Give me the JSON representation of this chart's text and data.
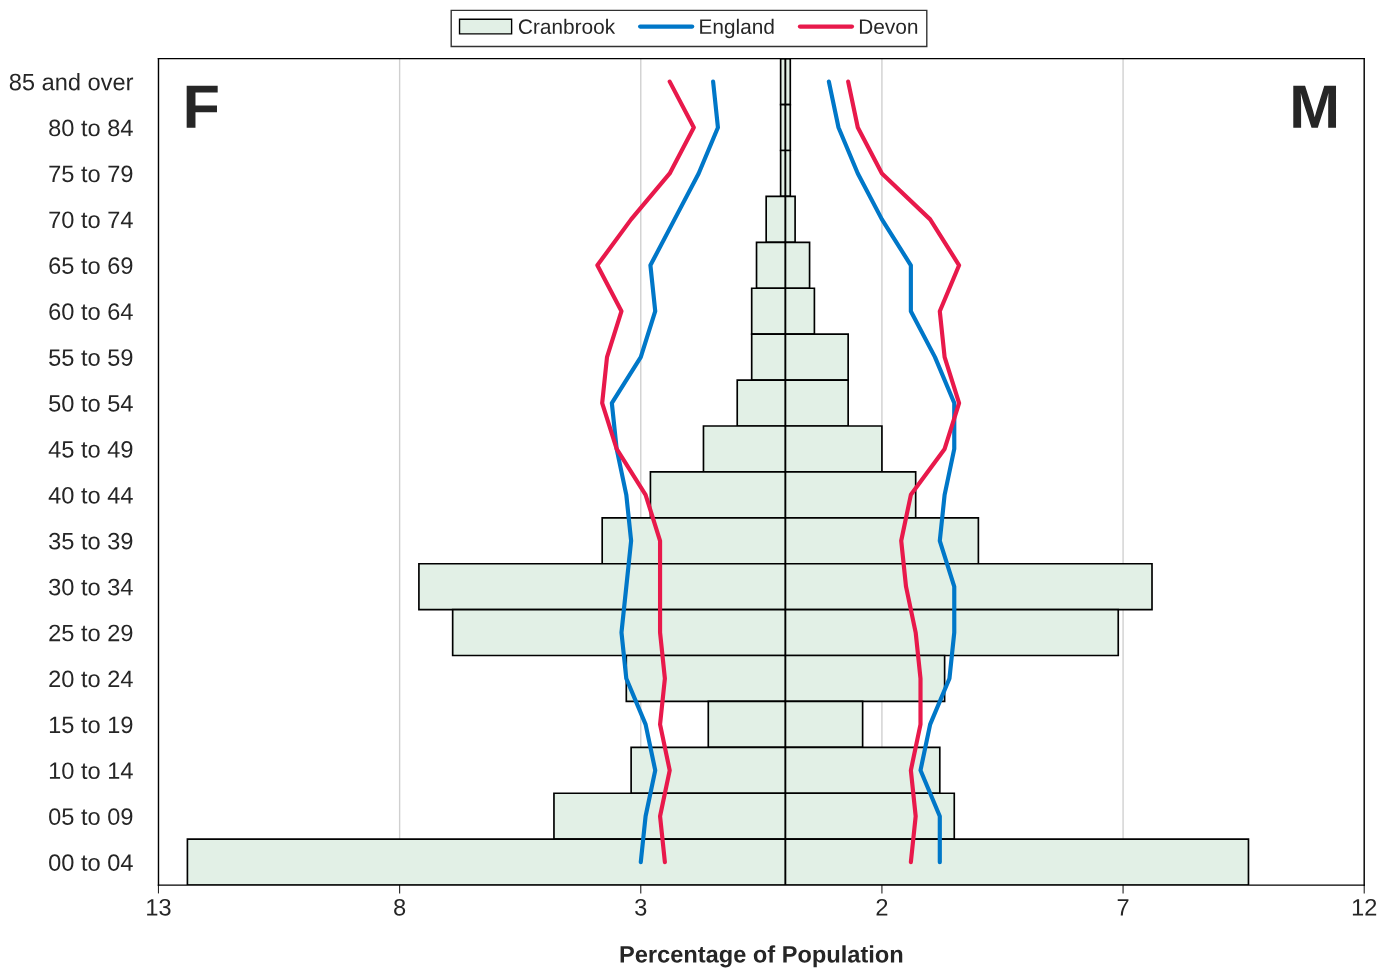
{
  "chart_data": {
    "type": "bar",
    "orientation": "horizontal",
    "stacked": true,
    "xlabel": "Percentage of Population",
    "categories": [
      "85 and over",
      "80 to 84",
      "75 to 79",
      "70 to 74",
      "65 to 69",
      "60 to 64",
      "55 to 59",
      "50 to 54",
      "45 to 49",
      "40 to 44",
      "35 to 39",
      "30 to 34",
      "25 to 29",
      "20 to 24",
      "15 to 19",
      "10 to 14",
      "05 to 09",
      "00 to 04"
    ],
    "series": [
      {
        "name": "Cranbrook",
        "color": "#e2f0e6",
        "values": [
          -0.1,
          -0.1,
          -0.1,
          -0.4,
          -0.6,
          -0.7,
          -0.7,
          -1.0,
          -1.7,
          -2.8,
          -3.8,
          -7.6,
          -6.9,
          -3.3,
          -1.6,
          -3.2,
          -4.8,
          -12.4
        ]
      },
      {
        "color": "#e2f0e6",
        "values": [
          0.1,
          0.1,
          0.1,
          0.2,
          0.5,
          0.6,
          1.3,
          1.3,
          2.0,
          2.7,
          4.0,
          7.6,
          6.9,
          3.3,
          1.6,
          3.2,
          3.5,
          9.6
        ]
      },
      {
        "name": "England",
        "type": "line",
        "color": "#0077c8",
        "values": [
          -1.5,
          -1.4,
          -1.8,
          -2.3,
          -2.8,
          -2.7,
          -3.0,
          -3.6,
          -3.5,
          -3.3,
          -3.2,
          -3.3,
          -3.4,
          -3.3,
          -2.9,
          -2.7,
          -2.9,
          -3.0
        ]
      },
      {
        "type": "line",
        "color": "#0077c8",
        "values": [
          0.9,
          1.1,
          1.5,
          2.0,
          2.6,
          2.6,
          3.1,
          3.5,
          3.5,
          3.3,
          3.2,
          3.5,
          3.5,
          3.4,
          3.0,
          2.8,
          3.2,
          3.2
        ]
      },
      {
        "name": "Devon",
        "type": "line",
        "color": "#e8194b",
        "values": [
          -2.4,
          -1.9,
          -2.4,
          -3.2,
          -3.9,
          -3.4,
          -3.7,
          -3.8,
          -3.5,
          -2.9,
          -2.6,
          -2.6,
          -2.6,
          -2.5,
          -2.6,
          -2.4,
          -2.6,
          -2.5
        ]
      },
      {
        "type": "line",
        "color": "#e8194b",
        "values": [
          1.3,
          1.5,
          2.0,
          3.0,
          3.6,
          3.2,
          3.3,
          3.6,
          3.3,
          2.6,
          2.4,
          2.5,
          2.7,
          2.8,
          2.8,
          2.6,
          2.7,
          2.6
        ]
      }
    ],
    "xlim": [
      -13,
      12
    ],
    "xticks": [
      {
        "value": -13,
        "label": "13"
      },
      {
        "value": -8,
        "label": "8"
      },
      {
        "value": -3,
        "label": "3"
      },
      2,
      7,
      12
    ],
    "annotations": [
      "F",
      "M"
    ],
    "grid": "x",
    "legend": "top",
    "line_style": "solid",
    "marker": "none"
  }
}
